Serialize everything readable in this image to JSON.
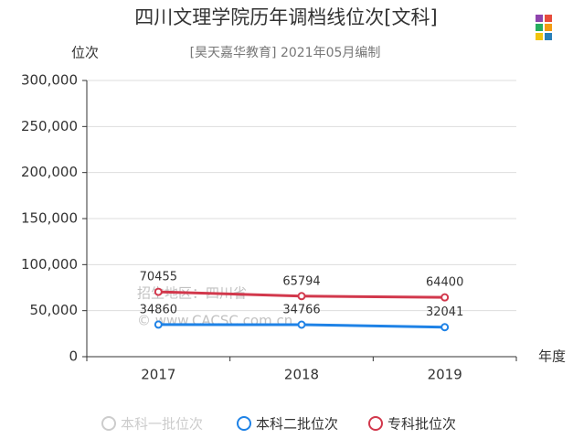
{
  "chart_data": {
    "type": "line",
    "title": "四川文理学院历年调档线位次[文科]",
    "subtitle": "[昊天嘉华教育] 2021年05月编制",
    "y_axis_label": "位次",
    "x_axis_label": "年度",
    "watermarks": [
      "招生地区：四川省",
      "© www.CACSC.com.cn"
    ],
    "categories": [
      "2017",
      "2018",
      "2019"
    ],
    "series": [
      {
        "name": "本科一批位次",
        "color": "#cccccc",
        "values": [
          null,
          null,
          null
        ]
      },
      {
        "name": "本科二批位次",
        "color": "#1e82e6",
        "values": [
          34860,
          34766,
          32041
        ]
      },
      {
        "name": "专科批位次",
        "color": "#d2384c",
        "values": [
          70455,
          65794,
          64400
        ]
      }
    ],
    "ylim": [
      0,
      300000
    ],
    "yticks": [
      0,
      {
        "value": 50000,
        "label": "50,000"
      },
      {
        "value": 100000,
        "label": "100,000"
      },
      {
        "value": 150000,
        "label": "150,000"
      },
      {
        "value": 200000,
        "label": "200,000"
      },
      {
        "value": 250000,
        "label": "250,000"
      },
      {
        "value": 300000,
        "label": "300,000"
      }
    ],
    "grid": true
  }
}
